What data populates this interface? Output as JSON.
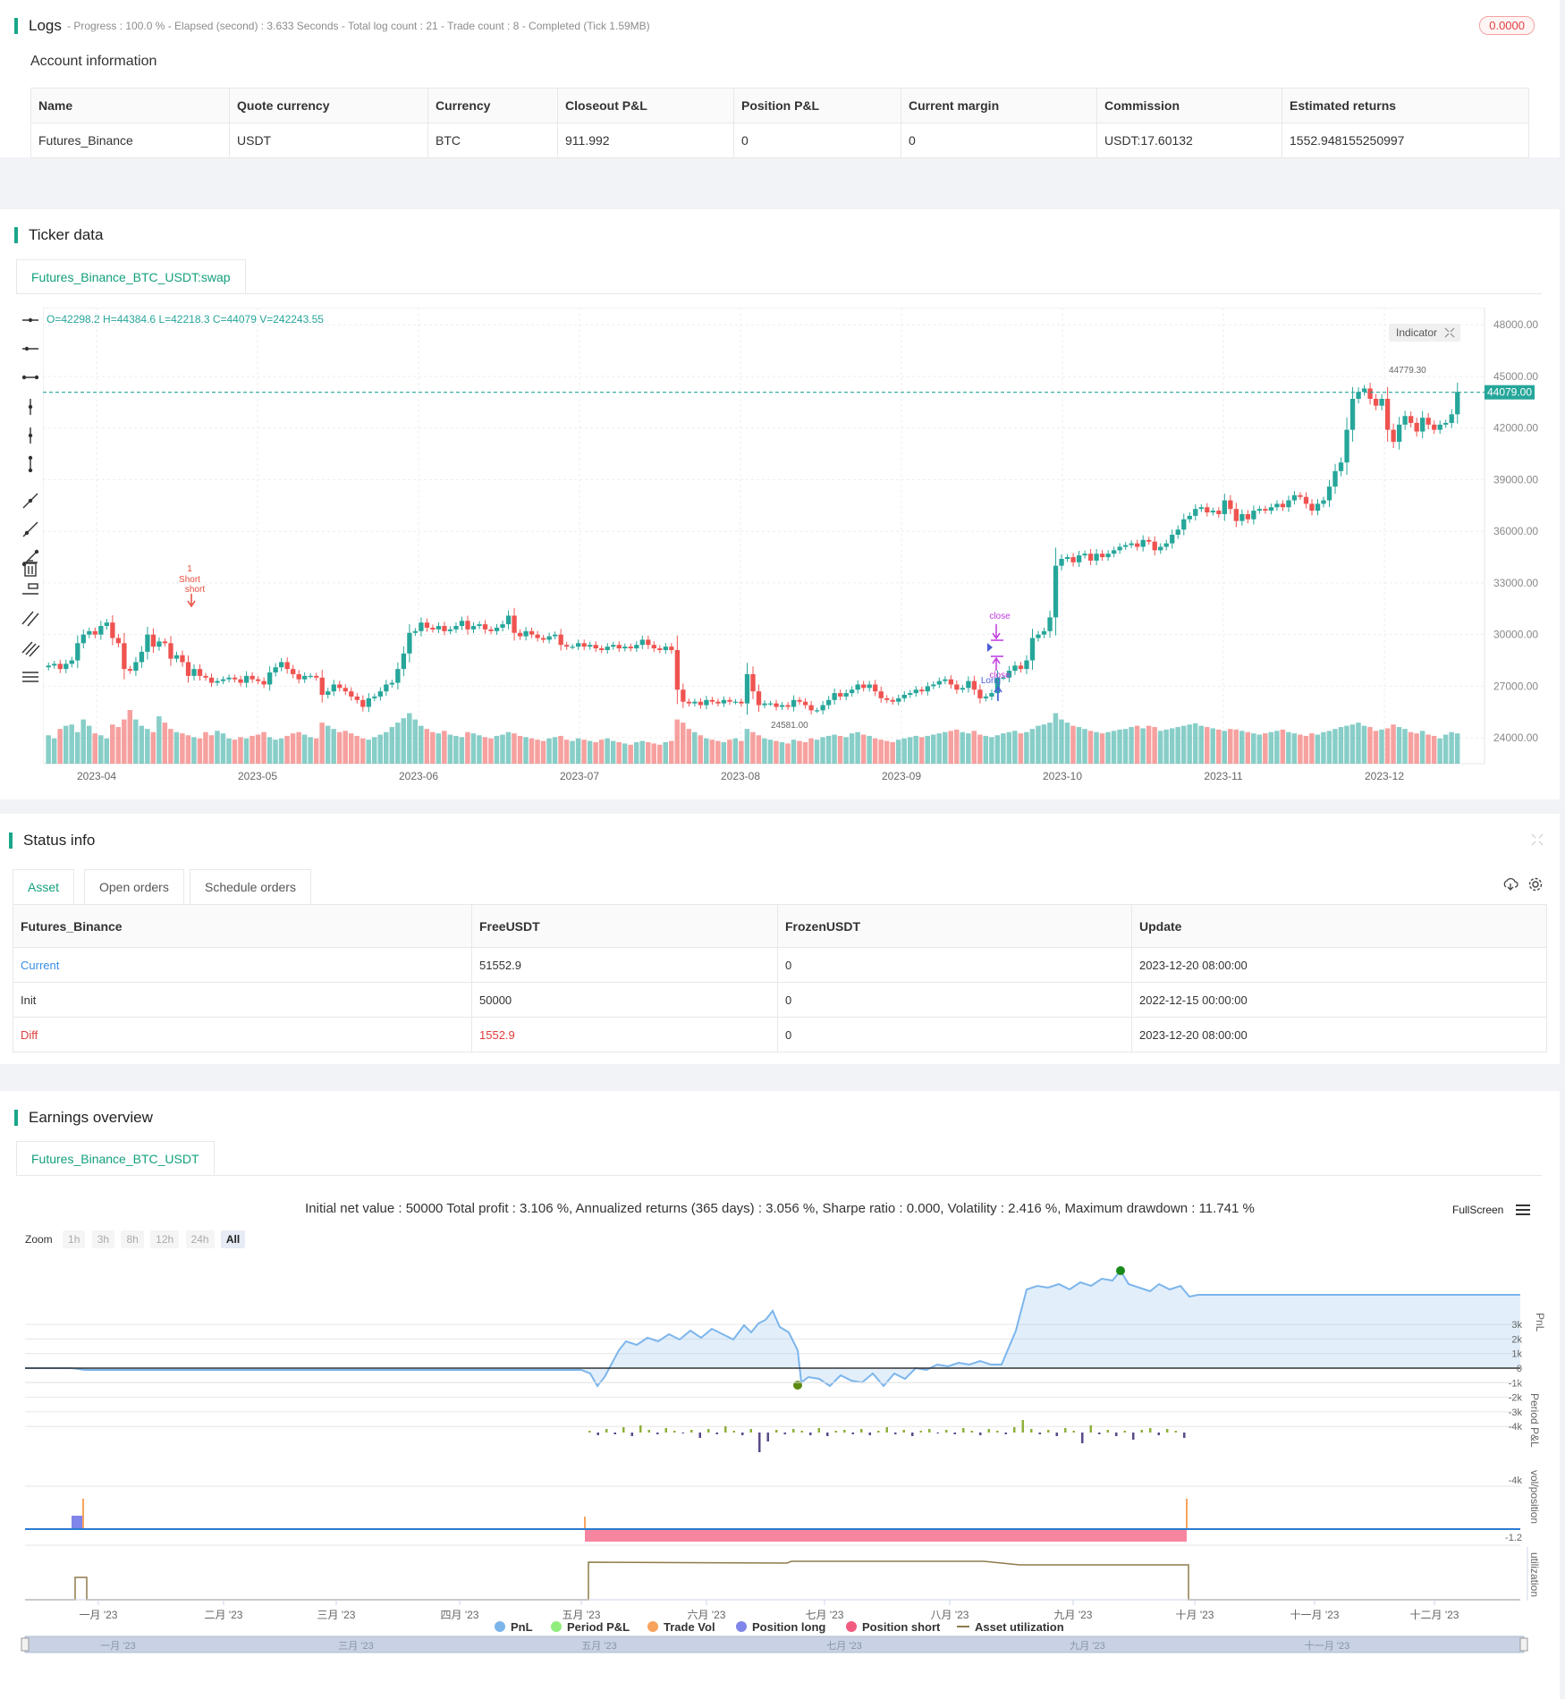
{
  "logs": {
    "title": "Logs",
    "summary": "- Progress : 100.0 % - Elapsed (second) : 3.633  Seconds - Total log count : 21 - Trade count : 8 - Completed (Tick 1.59MB)",
    "badge": "0.0000"
  },
  "account": {
    "title": "Account information",
    "headers": [
      "Name",
      "Quote currency",
      "Currency",
      "Closeout P&L",
      "Position P&L",
      "Current margin",
      "Commission",
      "Estimated returns"
    ],
    "row": [
      "Futures_Binance",
      "USDT",
      "BTC",
      "911.992",
      "0",
      "0",
      "USDT:17.60132",
      "1552.948155250997"
    ]
  },
  "ticker": {
    "title": "Ticker data",
    "tab": "Futures_Binance_BTC_USDT:swap",
    "ohlc": "O=42298.2 H=44384.6 L=42218.3 C=44079 V=242243.55",
    "indicator_btn": "Indicator",
    "price_tag": "44079.00",
    "high_label": "44779.30",
    "low_label": "24581.00",
    "marks": {
      "short_count": "1",
      "short_a": "Short",
      "short_b": "short",
      "close_a": "close",
      "close_b": "close",
      "long": "Long"
    }
  },
  "chart_data": {
    "type": "candlestick",
    "y_ticks": [
      "48000.00",
      "45000.00",
      "42000.00",
      "39000.00",
      "36000.00",
      "33000.00",
      "30000.00",
      "27000.00",
      "24000.00"
    ],
    "y_range": [
      22500,
      49000
    ],
    "x_ticks": [
      "2023-04",
      "2023-05",
      "2023-06",
      "2023-07",
      "2023-08",
      "2023-09",
      "2023-10",
      "2023-11",
      "2023-12"
    ],
    "last_price": 44079,
    "closes": [
      28200,
      28300,
      28000,
      28300,
      28500,
      29500,
      30000,
      30200,
      30000,
      30500,
      30700,
      29800,
      29500,
      28000,
      27900,
      28400,
      29000,
      30000,
      29300,
      29600,
      29500,
      28600,
      28800,
      28400,
      27600,
      28000,
      27600,
      27500,
      27200,
      27300,
      27400,
      27500,
      27400,
      27200,
      27600,
      27400,
      27300,
      27100,
      27800,
      28100,
      28400,
      28000,
      27700,
      27400,
      27600,
      27600,
      27500,
      26500,
      26700,
      27100,
      26900,
      26700,
      26400,
      26200,
      25800,
      26300,
      26400,
      26700,
      27100,
      27200,
      28000,
      28900,
      30100,
      30200,
      30700,
      30400,
      30300,
      30500,
      30200,
      30300,
      30500,
      30800,
      30300,
      30500,
      30600,
      30300,
      30200,
      30400,
      30600,
      31100,
      30100,
      29900,
      30200,
      30000,
      29800,
      29700,
      29900,
      30000,
      29400,
      29300,
      29300,
      29500,
      29300,
      29400,
      29200,
      29100,
      29300,
      29400,
      29200,
      29300,
      29200,
      29400,
      29700,
      29400,
      29200,
      29100,
      29300,
      29100,
      26800,
      26100,
      26000,
      26100,
      25900,
      26200,
      26100,
      26000,
      26200,
      26100,
      26100,
      26000,
      27700,
      26700,
      25900,
      26000,
      26000,
      25800,
      25900,
      25800,
      26200,
      26100,
      25900,
      25600,
      25600,
      25900,
      26200,
      26600,
      26400,
      26600,
      26800,
      27100,
      26900,
      27100,
      26700,
      26300,
      26200,
      26100,
      26300,
      26500,
      26600,
      26800,
      26700,
      27000,
      27100,
      27300,
      27400,
      27100,
      26800,
      26900,
      27300,
      26800,
      26300,
      26400,
      26600,
      27500,
      27500,
      27900,
      28200,
      28000,
      28500,
      29800,
      30000,
      30200,
      31000,
      34000,
      34400,
      34500,
      34200,
      34600,
      34700,
      34300,
      34700,
      34500,
      34700,
      34900,
      35100,
      35200,
      35300,
      35100,
      35500,
      35400,
      34900,
      35100,
      35300,
      35800,
      36100,
      36700,
      36900,
      37300,
      37400,
      37100,
      37200,
      37000,
      37800,
      37300,
      36600,
      37000,
      36700,
      37200,
      37300,
      37200,
      37400,
      37600,
      37400,
      37800,
      38100,
      38000,
      37600,
      37200,
      37600,
      37800,
      38600,
      39500,
      40000,
      41900,
      43700,
      44100,
      44300,
      43700,
      43300,
      43700,
      41900,
      41200,
      42200,
      42700,
      42300,
      41800,
      42600,
      42200,
      41900,
      42200,
      42300,
      42800,
      44100
    ],
    "volumes": [
      45,
      40,
      55,
      60,
      62,
      50,
      70,
      60,
      48,
      45,
      40,
      62,
      58,
      70,
      85,
      70,
      60,
      55,
      50,
      75,
      65,
      55,
      50,
      48,
      45,
      42,
      40,
      50,
      45,
      52,
      48,
      40,
      38,
      42,
      40,
      44,
      46,
      50,
      42,
      38,
      40,
      44,
      48,
      50,
      46,
      42,
      40,
      65,
      60,
      55,
      50,
      52,
      48,
      44,
      40,
      38,
      42,
      46,
      50,
      58,
      65,
      72,
      80,
      70,
      60,
      55,
      50,
      48,
      52,
      46,
      44,
      42,
      50,
      48,
      45,
      42,
      40,
      44,
      46,
      50,
      48,
      44,
      42,
      40,
      38,
      36,
      40,
      42,
      44,
      38,
      36,
      40,
      38,
      36,
      34,
      38,
      40,
      36,
      34,
      32,
      30,
      34,
      36,
      34,
      32,
      30,
      34,
      36,
      70,
      65,
      55,
      50,
      45,
      40,
      38,
      36,
      34,
      38,
      40,
      36,
      55,
      50,
      45,
      40,
      38,
      36,
      34,
      32,
      38,
      36,
      34,
      40,
      38,
      42,
      44,
      46,
      44,
      42,
      48,
      50,
      46,
      44,
      40,
      38,
      36,
      34,
      38,
      40,
      42,
      44,
      42,
      44,
      46,
      48,
      50,
      52,
      54,
      50,
      48,
      52,
      46,
      44,
      42,
      45,
      48,
      50,
      52,
      48,
      50,
      55,
      60,
      62,
      65,
      80,
      70,
      65,
      60,
      58,
      55,
      52,
      50,
      48,
      50,
      52,
      54,
      55,
      58,
      60,
      56,
      60,
      58,
      52,
      54,
      56,
      58,
      60,
      62,
      64,
      60,
      58,
      56,
      54,
      52,
      55,
      54,
      52,
      50,
      48,
      46,
      48,
      50,
      52,
      54,
      50,
      48,
      46,
      44,
      48,
      46,
      50,
      52,
      55,
      58,
      60,
      62,
      65,
      60,
      58,
      52,
      54,
      56,
      62,
      58,
      55,
      50,
      48,
      52,
      46,
      44,
      40,
      46,
      50,
      48,
      44,
      40,
      42,
      44
    ]
  },
  "status": {
    "title": "Status info",
    "tabs": [
      "Asset",
      "Open orders",
      "Schedule orders"
    ],
    "headers": [
      "Futures_Binance",
      "FreeUSDT",
      "FrozenUSDT",
      "Update"
    ],
    "rows": [
      [
        "Current",
        "51552.9",
        "0",
        "2023-12-20 08:00:00"
      ],
      [
        "Init",
        "50000",
        "0",
        "2022-12-15 00:00:00"
      ],
      [
        "Diff",
        "1552.9",
        "0",
        "2023-12-20 08:00:00"
      ]
    ]
  },
  "earnings": {
    "title": "Earnings overview",
    "tab": "Futures_Binance_BTC_USDT",
    "summary": "Initial net value : 50000 Total profit : 3.106 %, Annualized returns (365 days) : 3.056 %, Sharpe ratio : 0.000, Volatility : 2.416 %, Maximum drawdown : 11.741 %",
    "fullscreen": "FullScreen",
    "zoom_label": "Zoom",
    "zoom_buttons": [
      "1h",
      "3h",
      "8h",
      "12h",
      "24h",
      "All"
    ],
    "pnl_ticks": [
      "3k",
      "2k",
      "1k",
      "0",
      "-1k",
      "-2k",
      "-3k",
      "-4k"
    ],
    "period_tick": "-4k",
    "vol_tick": "-1.2",
    "axis_titles": [
      "PnL",
      "Period P&L",
      "vol/position",
      "utilization"
    ],
    "x_ticks": [
      "一月 '23",
      "二月 '23",
      "三月 '23",
      "四月 '23",
      "五月 '23",
      "六月 '23",
      "七月 '23",
      "八月 '23",
      "九月 '23",
      "十月 '23",
      "十一月 '23",
      "十二月 '23"
    ],
    "nav_ticks": [
      "一月 '23",
      "三月 '23",
      "五月 '23",
      "七月 '23",
      "九月 '23",
      "十一月 '23"
    ],
    "legend": [
      {
        "name": "PnL",
        "color": "#7cb5ec"
      },
      {
        "name": "Period P&L",
        "color": "#90ed7d"
      },
      {
        "name": "Trade Vol",
        "color": "#f7a35c"
      },
      {
        "name": "Position long",
        "color": "#8085e9"
      },
      {
        "name": "Position short",
        "color": "#f15c80"
      },
      {
        "name": "Asset utilization",
        "color": "#8d7b4a"
      }
    ]
  }
}
